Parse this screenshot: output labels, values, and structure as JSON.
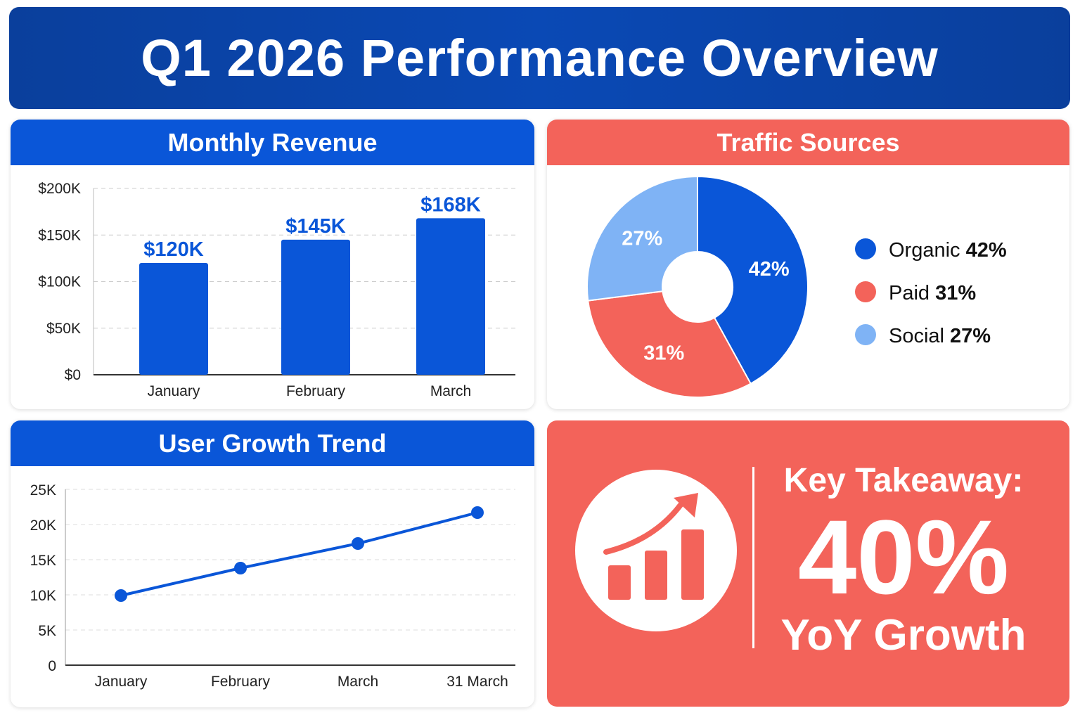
{
  "title": "Q1 2026 Performance Overview",
  "colors": {
    "banner": "#0a45a8",
    "primary_blue": "#0a56d8",
    "coral": "#f3635a",
    "light_blue": "#7fb3f5"
  },
  "chart_data": [
    {
      "type": "bar",
      "title": "Monthly Revenue",
      "categories": [
        "January",
        "February",
        "March"
      ],
      "values": [
        120,
        145,
        168
      ],
      "data_labels": [
        "$120K",
        "$145K",
        "$168K"
      ],
      "ytick_labels": [
        "$0",
        "$50K",
        "$100K",
        "$150K",
        "$200K"
      ],
      "yticks": [
        0,
        50,
        100,
        150,
        200
      ],
      "ylim": [
        0,
        200
      ],
      "grid": true
    },
    {
      "type": "pie",
      "title": "Traffic Sources",
      "donut": true,
      "slices": [
        {
          "name": "Organic",
          "value": 42,
          "label": "42%",
          "color": "#0a56d8"
        },
        {
          "name": "Paid",
          "value": 31,
          "label": "31%",
          "color": "#f3635a"
        },
        {
          "name": "Social",
          "value": 27,
          "label": "27%",
          "color": "#7fb3f5"
        }
      ],
      "legend_placement": "right"
    },
    {
      "type": "line",
      "title": "User Growth Trend",
      "categories": [
        "January",
        "February",
        "March",
        "31 March"
      ],
      "values": [
        9.9,
        13.8,
        17.3,
        21.7
      ],
      "ytick_labels": [
        "0",
        "5K",
        "10K",
        "15K",
        "20K",
        "25K"
      ],
      "yticks": [
        0,
        5,
        10,
        15,
        20,
        25
      ],
      "ylim": [
        0,
        25
      ],
      "grid": true
    }
  ],
  "takeaway": {
    "heading": "Key Takeaway:",
    "value": "40%",
    "caption": "YoY Growth",
    "icon": "growth-chart-icon"
  }
}
